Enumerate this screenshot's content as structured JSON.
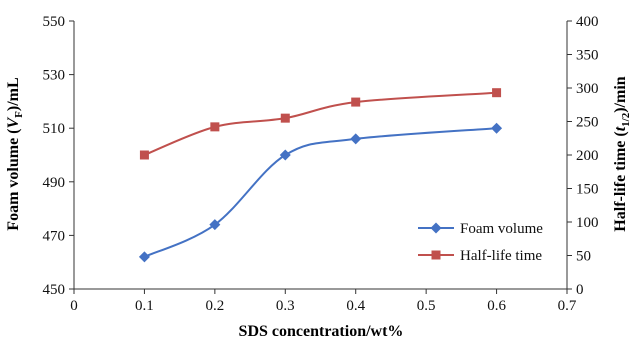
{
  "chart_data": {
    "type": "line",
    "x": [
      0.1,
      0.2,
      0.3,
      0.4,
      0.6
    ],
    "xlabel": "SDS concentration/wt%",
    "xlim": [
      0,
      0.7
    ],
    "xticks": [
      "0",
      "0.1",
      "0.2",
      "0.3",
      "0.4",
      "0.5",
      "0.6",
      "0.7"
    ],
    "ylabel_left": "Foam volume (V_F)/mL",
    "ylim_left": [
      450,
      550
    ],
    "yticks_left": [
      "450",
      "470",
      "490",
      "510",
      "530",
      "550"
    ],
    "ylabel_right": "Half-life time (t_1/2)/min",
    "ylim_right": [
      0,
      400
    ],
    "yticks_right": [
      "0",
      "50",
      "100",
      "150",
      "200",
      "250",
      "300",
      "350",
      "400"
    ],
    "grid": false,
    "legend_position": "bottom-right",
    "series": [
      {
        "name": "Foam volume",
        "axis": "left",
        "marker": "diamond",
        "color": "#4472C4",
        "values": [
          462,
          474,
          500,
          506,
          510
        ]
      },
      {
        "name": "Half-life time",
        "axis": "right",
        "marker": "square",
        "color": "#C0504D",
        "values": [
          200,
          242,
          255,
          279,
          293
        ]
      }
    ]
  }
}
